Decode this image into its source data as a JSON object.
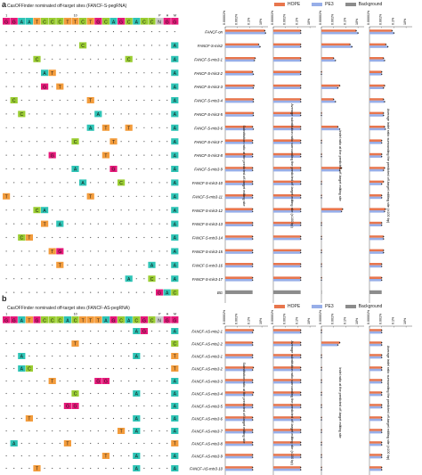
{
  "colors": {
    "A": "#2ec4b6",
    "C": "#9acd32",
    "G": "#e6197a",
    "T": "#f39c3c",
    "hope": "#e8764d",
    "pe3": "#97aee8",
    "background": "#8c8c8c"
  },
  "legend": [
    "HOPE",
    "PE3",
    "Background"
  ],
  "tick_labels": [
    "0.00001%",
    "0.001%",
    "0.1%",
    "10%"
  ],
  "panel_a": {
    "letter": "a",
    "title": "CasOFFinder nominated off-target sites (FANCF-S-pegRNA)",
    "ref_sequence": "GGAATCCCTTCTGCAGCACCNGG",
    "marker_1": "1",
    "marker_10": "10",
    "pam_label": [
      "P",
      "A",
      "M"
    ],
    "rows": [
      "FANCF-on",
      "FANCF-S-mis2",
      "FANCF-S-mis3-1",
      "FANCF-S-mis3-2",
      "FANCF-S-mis3-3",
      "FANCF-S-mis3-4",
      "FANCF-S-mis3-5",
      "FANCF-S-mis3-6",
      "FANCF-S-mis3-7",
      "FANCF-S-mis3-8",
      "FANCF-S-mis3-9",
      "FANCF-S-mis3-10",
      "FANCF-S-mis3-11",
      "FANCF-S-mis3-12",
      "FANCF-S-mis3-13",
      "FANCF-S-mis3-14",
      "FANCF-S-mis3-15",
      "FANCF-S-mis3-16",
      "FANCF-S-mis3-17",
      "BG"
    ],
    "col_labels": [
      "Substitution ratio at the predicted off-target editing site",
      "Average substitution ratio surrounding the predicted off-target editing site (±100 bp)",
      "Indel ratio at the predicted off-target editing site",
      "Average indel ratio surrounding the predicted off-target editing site (±100 bp)"
    ]
  },
  "panel_b": {
    "letter": "b",
    "title": "CasOFFinder nominated off-target sites (FANCF-AS-pegRNA)",
    "ref_sequence": "GGATGCCCACTTTAGCACGCNGG",
    "marker_1": "1",
    "marker_10": "10",
    "pam_label": [
      "P",
      "A",
      "M"
    ],
    "rows": [
      "FANCF-AS-mis2-1",
      "FANCF-AS-mis2-2",
      "FANCF-AS-mis3-1",
      "FANCF-AS-mis3-2",
      "FANCF-AS-mis3-3",
      "FANCF-AS-mis3-4",
      "FANCF-AS-mis3-5",
      "FANCF-AS-mis3-6",
      "FANCF-AS-mis3-7",
      "FANCF-AS-mis3-8",
      "FANCF-AS-mis3-9",
      "FANCF-AS-mis3-10"
    ],
    "col_labels": [
      "Substitution ratio at the predicted off-target editing site",
      "Average substitution ratio surrounding the predicted off-target editing site (±100 bp)",
      "Indel ratio at the predicted off-target editing site",
      "Average indel ratio surrounding the predicted off-target editing site (±100 bp)"
    ]
  },
  "chart_data": [
    {
      "type": "bar",
      "title": "",
      "panel": "a",
      "orientation": "horizontal",
      "categories": [
        "FANCF-on",
        "FANCF-S-mis2",
        "FANCF-S-mis3-1",
        "FANCF-S-mis3-2",
        "FANCF-S-mis3-3",
        "FANCF-S-mis3-4",
        "FANCF-S-mis3-5",
        "FANCF-S-mis3-6",
        "FANCF-S-mis3-7",
        "FANCF-S-mis3-8",
        "FANCF-S-mis3-9",
        "FANCF-S-mis3-10",
        "FANCF-S-mis3-11",
        "FANCF-S-mis3-12",
        "FANCF-S-mis3-13",
        "FANCF-S-mis3-14",
        "FANCF-S-mis3-15",
        "FANCF-S-mis3-16",
        "FANCF-S-mis3-17",
        "BG"
      ],
      "log_scale": true,
      "xlim_percent": [
        1e-05,
        100
      ],
      "panels": [
        {
          "xlabel": "Substitution ratio at the predicted off-target editing site",
          "series": [
            {
              "name": "HOPE",
              "values": [
                30,
                3,
                0.8,
                0.3,
                0.5,
                0.4,
                0.4,
                0.3,
                0.3,
                0.3,
                0.3,
                0.3,
                0.3,
                0.3,
                0.3,
                0.3,
                0.3,
                0.3,
                0.3,
                null
              ]
            },
            {
              "name": "PE3",
              "values": [
                40,
                5,
                0.6,
                0.4,
                0.4,
                0.4,
                0.4,
                0.4,
                0.3,
                0.3,
                0.3,
                0.3,
                0.3,
                0.3,
                0.3,
                0.3,
                0.3,
                0.3,
                0.3,
                null
              ]
            },
            {
              "name": "Background",
              "values": [
                null,
                null,
                null,
                null,
                null,
                null,
                null,
                null,
                null,
                null,
                null,
                null,
                null,
                null,
                null,
                null,
                null,
                null,
                null,
                0.3
              ]
            }
          ]
        },
        {
          "xlabel": "Average substitution ratio surrounding the predicted off-target editing site (±100 bp)",
          "series": [
            {
              "name": "HOPE",
              "values": [
                0.3,
                0.3,
                0.3,
                0.3,
                0.3,
                0.3,
                0.3,
                0.3,
                0.3,
                0.3,
                0.3,
                0.3,
                0.3,
                0.3,
                0.3,
                0.3,
                0.3,
                0.3,
                0.3,
                null
              ]
            },
            {
              "name": "PE3",
              "values": [
                0.3,
                0.3,
                0.3,
                0.3,
                0.3,
                0.3,
                0.3,
                0.3,
                0.3,
                0.3,
                0.3,
                0.3,
                0.3,
                0.3,
                0.3,
                0.3,
                0.3,
                0.3,
                0.3,
                null
              ]
            },
            {
              "name": "Background",
              "values": [
                null,
                null,
                null,
                null,
                null,
                null,
                null,
                null,
                null,
                null,
                null,
                null,
                null,
                null,
                null,
                null,
                null,
                null,
                null,
                0.3
              ]
            }
          ]
        },
        {
          "xlabel": "Indel ratio at the predicted off-target editing site",
          "series": [
            {
              "name": "HOPE",
              "values": [
                5,
                0.5,
                0.001,
                1e-05,
                0.01,
                0.001,
                1e-05,
                0.005,
                1e-05,
                1e-05,
                0.02,
                1e-05,
                1e-05,
                0.03,
                1e-05,
                1e-05,
                1e-05,
                1e-05,
                1e-05,
                null
              ]
            },
            {
              "name": "PE3",
              "values": [
                10,
                1,
                0.002,
                1e-05,
                0.005,
                0.002,
                1e-05,
                0.01,
                1e-05,
                1e-05,
                0.01,
                1e-05,
                1e-05,
                0.02,
                1e-05,
                1e-05,
                1e-05,
                1e-05,
                1e-05,
                null
              ]
            },
            {
              "name": "Background",
              "values": [
                null,
                null,
                null,
                null,
                null,
                null,
                null,
                null,
                null,
                null,
                null,
                null,
                null,
                null,
                null,
                null,
                null,
                null,
                null,
                1e-05
              ]
            }
          ]
        },
        {
          "xlabel": "Average indel ratio surrounding the predicted off-target editing site (±100 bp)",
          "series": [
            {
              "name": "HOPE",
              "values": [
                0.05,
                0.005,
                0.002,
                0.001,
                0.003,
                0.002,
                0.002,
                0.003,
                0.001,
                0.001,
                0.003,
                0.002,
                0.001,
                0.004,
                0.001,
                0.002,
                0.002,
                0.001,
                0.001,
                null
              ]
            },
            {
              "name": "PE3",
              "values": [
                0.1,
                0.01,
                0.003,
                0.001,
                0.002,
                0.003,
                0.002,
                0.004,
                0.001,
                0.001,
                0.002,
                0.001,
                0.001,
                0.003,
                0.001,
                0.002,
                0.002,
                0.001,
                0.001,
                null
              ]
            },
            {
              "name": "Background",
              "values": [
                null,
                null,
                null,
                null,
                null,
                null,
                null,
                null,
                null,
                null,
                null,
                null,
                null,
                null,
                null,
                null,
                null,
                null,
                null,
                0.001
              ]
            }
          ]
        }
      ]
    },
    {
      "type": "bar",
      "title": "",
      "panel": "b",
      "orientation": "horizontal",
      "categories": [
        "FANCF-AS-mis2-1",
        "FANCF-AS-mis2-2",
        "FANCF-AS-mis3-1",
        "FANCF-AS-mis3-2",
        "FANCF-AS-mis3-3",
        "FANCF-AS-mis3-4",
        "FANCF-AS-mis3-5",
        "FANCF-AS-mis3-6",
        "FANCF-AS-mis3-7",
        "FANCF-AS-mis3-8",
        "FANCF-AS-mis3-9",
        "FANCF-AS-mis3-10"
      ],
      "log_scale": true,
      "xlim_percent": [
        1e-05,
        100
      ],
      "panels": [
        {
          "xlabel": "Substitution ratio at the predicted off-target editing site",
          "series": [
            {
              "name": "HOPE",
              "values": [
                0.4,
                0.3,
                0.3,
                0.4,
                0.3,
                0.4,
                0.3,
                0.3,
                0.3,
                0.3,
                0.3,
                0.3
              ]
            },
            {
              "name": "PE3",
              "values": [
                0.3,
                0.3,
                0.3,
                0.3,
                0.3,
                0.3,
                0.3,
                0.3,
                0.3,
                0.3,
                0.3,
                0.3
              ]
            }
          ]
        },
        {
          "xlabel": "Average substitution ratio surrounding the predicted off-target editing site (±100 bp)",
          "series": [
            {
              "name": "HOPE",
              "values": [
                0.3,
                0.3,
                0.3,
                0.3,
                0.3,
                0.3,
                0.3,
                0.3,
                0.3,
                0.3,
                0.3,
                0.3
              ]
            },
            {
              "name": "PE3",
              "values": [
                0.3,
                0.3,
                0.3,
                0.3,
                0.3,
                0.3,
                0.3,
                0.3,
                0.3,
                0.3,
                0.3,
                0.3
              ]
            }
          ]
        },
        {
          "xlabel": "Indel ratio at the predicted off-target editing site",
          "series": [
            {
              "name": "HOPE",
              "values": [
                1e-05,
                0.01,
                1e-05,
                1e-05,
                1e-05,
                1e-05,
                1e-05,
                1e-05,
                1e-05,
                1e-05,
                1e-05,
                1e-05
              ]
            },
            {
              "name": "PE3",
              "values": [
                1e-05,
                0.005,
                1e-05,
                1e-05,
                1e-05,
                1e-05,
                1e-05,
                1e-05,
                1e-05,
                1e-05,
                1e-05,
                1e-05
              ]
            }
          ]
        },
        {
          "xlabel": "Average indel ratio surrounding the predicted off-target editing site (±100 bp)",
          "series": [
            {
              "name": "HOPE",
              "values": [
                0.001,
                0.001,
                0.001,
                0.001,
                0.001,
                0.001,
                0.001,
                0.001,
                0.001,
                0.001,
                0.001,
                0.001
              ]
            },
            {
              "name": "PE3",
              "values": [
                0.001,
                0.001,
                0.001,
                0.001,
                0.001,
                0.001,
                0.001,
                0.001,
                0.001,
                0.001,
                0.001,
                0.001
              ]
            }
          ]
        }
      ]
    }
  ]
}
